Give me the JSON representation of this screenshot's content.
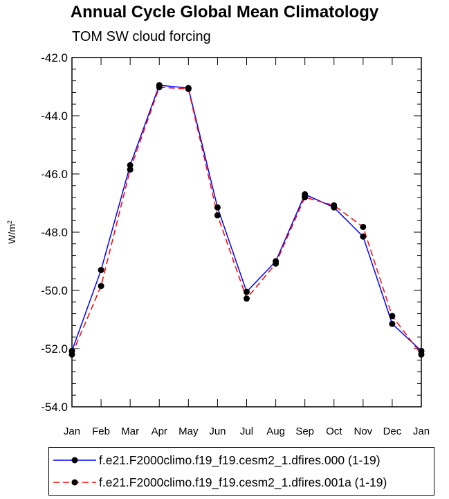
{
  "chart_data": {
    "type": "line",
    "title": "Annual Cycle Global Mean Climatology",
    "subtitle": "TOM SW cloud forcing",
    "xlabel": "",
    "ylabel": "W/m",
    "ylabel_superscript": "2",
    "categories": [
      "Jan",
      "Feb",
      "Mar",
      "Apr",
      "May",
      "Jun",
      "Jul",
      "Aug",
      "Sep",
      "Oct",
      "Nov",
      "Dec",
      "Jan"
    ],
    "ylim": [
      -54.0,
      -42.0
    ],
    "yticks": [
      -54.0,
      -52.0,
      -50.0,
      -48.0,
      -46.0,
      -44.0,
      -42.0
    ],
    "ytick_labels": [
      "-54.0",
      "-52.0",
      "-50.0",
      "-48.0",
      "-46.0",
      "-44.0",
      "-42.0"
    ],
    "grid": false,
    "series": [
      {
        "name": "f.e21.F2000climo.f19_f19.cesm2_1.dfires.000 (1-19)",
        "color": "#0000ff",
        "style": "solid",
        "values": [
          -52.08,
          -49.3,
          -45.7,
          -42.95,
          -43.05,
          -47.15,
          -50.05,
          -49.0,
          -46.7,
          -47.15,
          -48.15,
          -51.15,
          -52.08
        ]
      },
      {
        "name": "f.e21.F2000climo.f19_f19.cesm2_1.dfires.001a (1-19)",
        "color": "#ff0000",
        "style": "dashed",
        "values": [
          -52.2,
          -49.85,
          -45.85,
          -43.02,
          -43.08,
          -47.42,
          -50.28,
          -49.08,
          -46.8,
          -47.08,
          -47.82,
          -50.88,
          -52.2
        ]
      }
    ]
  }
}
